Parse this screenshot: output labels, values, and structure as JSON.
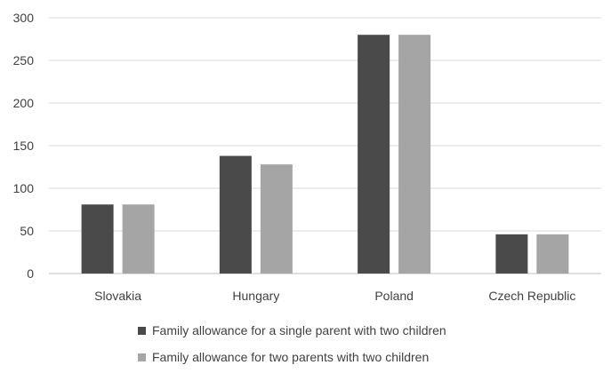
{
  "chart_data": {
    "type": "bar",
    "categories": [
      "Slovakia",
      "Hungary",
      "Poland",
      "Czech Republic"
    ],
    "series": [
      {
        "name": "Family allowance for a single parent with two children",
        "color": "#4a4a4a",
        "values": [
          81,
          138,
          280,
          46
        ]
      },
      {
        "name": "Family allowance for two parents with two children",
        "color": "#a5a5a5",
        "values": [
          81,
          128,
          280,
          46
        ]
      }
    ],
    "ylim": [
      0,
      300
    ],
    "yticks": [
      0,
      50,
      100,
      150,
      200,
      250,
      300
    ],
    "grid": true,
    "legend_position": "bottom"
  }
}
